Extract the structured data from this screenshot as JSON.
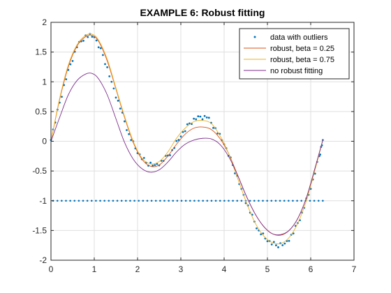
{
  "chart_data": {
    "type": "line",
    "title": "EXAMPLE 6: Robust fitting",
    "xlabel": "",
    "ylabel": "",
    "xlim": [
      0,
      7
    ],
    "ylim": [
      -2,
      2
    ],
    "xticks": [
      0,
      1,
      2,
      3,
      4,
      5,
      6,
      7
    ],
    "yticks": [
      -2,
      -1.5,
      -1,
      -0.5,
      0,
      0.5,
      1,
      1.5,
      2
    ],
    "xtick_labels": [
      "0",
      "1",
      "2",
      "3",
      "4",
      "5",
      "6",
      "7"
    ],
    "ytick_labels": [
      "-2",
      "-1.5",
      "-1",
      "-0.5",
      "0",
      "0.5",
      "1",
      "1.5",
      "2"
    ],
    "grid": true,
    "legend_position": "top-right",
    "series": [
      {
        "name": "data with outliers",
        "style": "markers",
        "color": "#0072BD",
        "x": [
          0,
          0.2,
          0.4,
          0.6,
          0.8,
          1.0,
          1.2,
          1.4,
          1.6,
          1.8,
          2.0,
          2.2,
          2.4,
          2.6,
          2.8,
          3.0,
          3.2,
          3.4,
          3.6,
          3.8,
          4.0,
          4.2,
          4.4,
          4.6,
          4.8,
          5.0,
          5.2,
          5.4,
          5.6,
          5.8,
          6.0,
          6.2,
          6.28
        ],
        "y": [
          0.02,
          0.65,
          1.2,
          1.58,
          1.78,
          1.75,
          1.45,
          1.0,
          0.55,
          0.12,
          -0.2,
          -0.36,
          -0.4,
          -0.33,
          -0.15,
          0.08,
          0.3,
          0.42,
          0.4,
          0.22,
          -0.05,
          -0.4,
          -0.8,
          -1.2,
          -1.5,
          -1.68,
          -1.75,
          -1.72,
          -1.55,
          -1.2,
          -0.8,
          -0.25,
          0.02
        ]
      },
      {
        "name": "data with outliers (outlier row)",
        "style": "markers",
        "color": "#0072BD",
        "x": [
          0.05,
          6.28
        ],
        "y": [
          -1,
          -1
        ]
      },
      {
        "name": "robust, beta = 0.25",
        "style": "line",
        "color": "#D95319",
        "x": [
          0,
          0.2,
          0.4,
          0.6,
          0.8,
          0.95,
          1.1,
          1.3,
          1.5,
          1.7,
          1.9,
          2.1,
          2.3,
          2.5,
          2.7,
          2.9,
          3.1,
          3.3,
          3.5,
          3.7,
          3.9,
          4.1,
          4.3,
          4.5,
          4.7,
          4.9,
          5.1,
          5.3,
          5.5,
          5.7,
          5.9,
          6.1,
          6.28
        ],
        "y": [
          0,
          0.7,
          1.25,
          1.6,
          1.76,
          1.78,
          1.68,
          1.35,
          0.88,
          0.4,
          -0.02,
          -0.3,
          -0.42,
          -0.4,
          -0.25,
          -0.05,
          0.12,
          0.22,
          0.24,
          0.2,
          0.05,
          -0.2,
          -0.55,
          -0.9,
          -1.2,
          -1.42,
          -1.55,
          -1.58,
          -1.5,
          -1.3,
          -0.95,
          -0.45,
          0.02
        ]
      },
      {
        "name": "robust, beta = 0.75",
        "style": "line",
        "color": "#EDB120",
        "x": [
          0,
          0.2,
          0.4,
          0.6,
          0.8,
          0.95,
          1.1,
          1.3,
          1.5,
          1.7,
          1.9,
          2.1,
          2.3,
          2.5,
          2.7,
          2.9,
          3.1,
          3.3,
          3.5,
          3.7,
          3.9,
          4.1,
          4.3,
          4.5,
          4.7,
          4.9,
          5.1,
          5.3,
          5.5,
          5.7,
          5.9,
          6.1,
          6.28
        ],
        "y": [
          0,
          0.72,
          1.28,
          1.62,
          1.78,
          1.8,
          1.7,
          1.38,
          0.9,
          0.42,
          0.0,
          -0.28,
          -0.38,
          -0.34,
          -0.18,
          0.05,
          0.22,
          0.33,
          0.35,
          0.3,
          0.1,
          -0.2,
          -0.6,
          -1.0,
          -1.35,
          -1.58,
          -1.7,
          -1.72,
          -1.62,
          -1.38,
          -1.0,
          -0.48,
          0.02
        ]
      },
      {
        "name": "no robust fitting",
        "style": "line",
        "color": "#7E2F8E",
        "x": [
          0,
          0.2,
          0.4,
          0.6,
          0.8,
          0.95,
          1.1,
          1.3,
          1.5,
          1.7,
          1.9,
          2.1,
          2.3,
          2.5,
          2.7,
          2.9,
          3.1,
          3.3,
          3.5,
          3.7,
          3.9,
          4.1,
          4.3,
          4.5,
          4.7,
          4.9,
          5.1,
          5.3,
          5.5,
          5.7,
          5.9,
          6.1,
          6.28
        ],
        "y": [
          0,
          0.4,
          0.78,
          1.02,
          1.13,
          1.14,
          1.05,
          0.78,
          0.38,
          -0.02,
          -0.3,
          -0.46,
          -0.52,
          -0.48,
          -0.35,
          -0.18,
          -0.05,
          0.02,
          0.05,
          0.04,
          -0.05,
          -0.25,
          -0.55,
          -0.9,
          -1.2,
          -1.42,
          -1.55,
          -1.57,
          -1.5,
          -1.3,
          -0.95,
          -0.45,
          0.02
        ]
      }
    ]
  }
}
